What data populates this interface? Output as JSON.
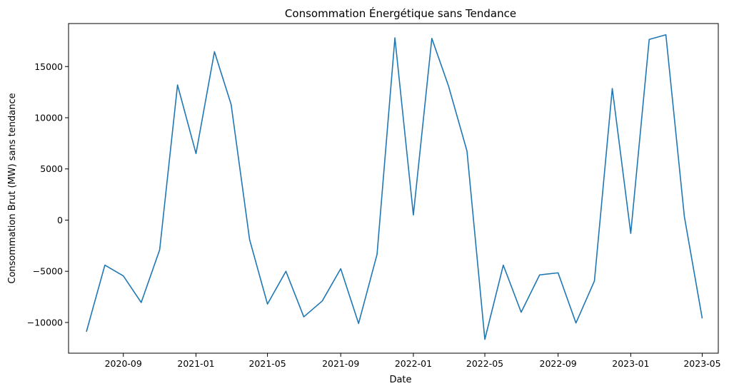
{
  "chart_data": {
    "type": "line",
    "title": "Consommation Énergétique sans Tendance",
    "xlabel": "Date",
    "ylabel": "Consommation Brut (MW) sans tendance",
    "xlim": [
      "2020-06-01",
      "2023-05-28"
    ],
    "ylim": [
      -13000,
      19200
    ],
    "grid": false,
    "x_ticks": [
      {
        "date": "2020-09-01",
        "label": "2020-09"
      },
      {
        "date": "2021-01-01",
        "label": "2021-01"
      },
      {
        "date": "2021-05-01",
        "label": "2021-05"
      },
      {
        "date": "2021-09-01",
        "label": "2021-09"
      },
      {
        "date": "2022-01-01",
        "label": "2022-01"
      },
      {
        "date": "2022-05-01",
        "label": "2022-05"
      },
      {
        "date": "2022-09-01",
        "label": "2022-09"
      },
      {
        "date": "2023-01-01",
        "label": "2023-01"
      },
      {
        "date": "2023-05-01",
        "label": "2023-05"
      }
    ],
    "y_ticks": [
      {
        "value": -10000,
        "label": "−10000"
      },
      {
        "value": -5000,
        "label": "−5000"
      },
      {
        "value": 0,
        "label": "0"
      },
      {
        "value": 5000,
        "label": "5000"
      },
      {
        "value": 10000,
        "label": "10000"
      },
      {
        "value": 15000,
        "label": "15000"
      }
    ],
    "series": [
      {
        "color": "#1f77b4",
        "x": [
          "2020-07-01",
          "2020-08-01",
          "2020-09-01",
          "2020-10-01",
          "2020-11-01",
          "2020-12-01",
          "2021-01-01",
          "2021-02-01",
          "2021-03-01",
          "2021-04-01",
          "2021-05-01",
          "2021-06-01",
          "2021-07-01",
          "2021-08-01",
          "2021-09-01",
          "2021-10-01",
          "2021-11-01",
          "2021-12-01",
          "2022-01-01",
          "2022-02-01",
          "2022-03-01",
          "2022-04-01",
          "2022-05-01",
          "2022-06-01",
          "2022-07-01",
          "2022-08-01",
          "2022-09-01",
          "2022-10-01",
          "2022-11-01",
          "2022-12-01",
          "2023-01-01",
          "2023-02-01",
          "2023-03-01",
          "2023-04-01",
          "2023-05-01"
        ],
        "values": [
          -10900,
          -4400,
          -5450,
          -8050,
          -2900,
          13200,
          6500,
          16450,
          11300,
          -1900,
          -8200,
          -5000,
          -9450,
          -7900,
          -4750,
          -10100,
          -3350,
          17800,
          500,
          17750,
          13100,
          6750,
          -11650,
          -4400,
          -9000,
          -5350,
          -5150,
          -10050,
          -5950,
          12850,
          -1300,
          17650,
          18100,
          350,
          -9600
        ]
      }
    ]
  }
}
